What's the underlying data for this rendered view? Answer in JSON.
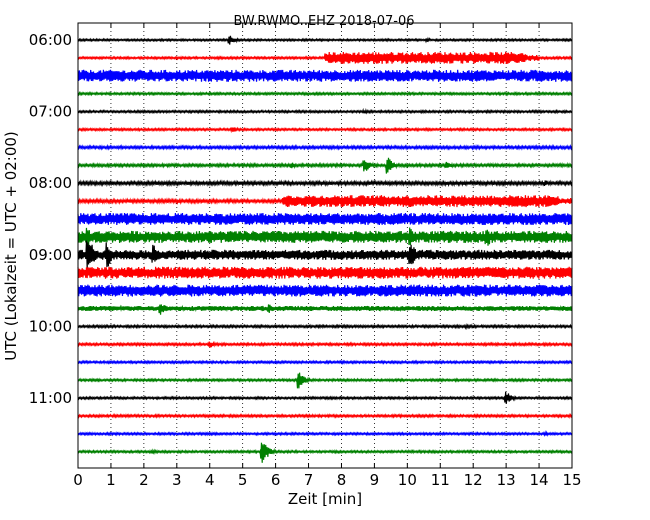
{
  "chart_data": {
    "type": "line",
    "title": "BW.RWMO..EHZ 2018-07-06",
    "xlabel": "Zeit  [min]",
    "ylabel": "UTC (Lokalzeit = UTC + 02:00)",
    "xlim": [
      0,
      15
    ],
    "x_ticks": [
      "0",
      "1",
      "2",
      "3",
      "4",
      "5",
      "6",
      "7",
      "8",
      "9",
      "10",
      "11",
      "12",
      "13",
      "14",
      "15"
    ],
    "y_ticks": [
      "06:00",
      "07:00",
      "08:00",
      "09:00",
      "10:00",
      "11:00"
    ],
    "grid": "vertical dotted",
    "trace_interval_min": 15,
    "colors": [
      "#000000",
      "#ff0000",
      "#0000ff",
      "#008000"
    ],
    "traces": [
      {
        "start": "06:00",
        "color": "#000000",
        "base": 0.9,
        "events": [
          {
            "t": 4.6,
            "amp": 5
          },
          {
            "t": 10.6,
            "amp": 2
          }
        ]
      },
      {
        "start": "06:15",
        "color": "#ff0000",
        "base": 1.0,
        "events": [
          {
            "t": 7.5,
            "amp": 6,
            "w": 6.5
          }
        ]
      },
      {
        "start": "06:30",
        "color": "#0000ff",
        "base": 6.0,
        "events": [
          {
            "t": 2.1,
            "amp": 3
          }
        ]
      },
      {
        "start": "06:45",
        "color": "#008000",
        "base": 1.0,
        "events": []
      },
      {
        "start": "07:00",
        "color": "#000000",
        "base": 1.0,
        "events": [
          {
            "t": 8.7,
            "amp": 2
          }
        ]
      },
      {
        "start": "07:15",
        "color": "#ff0000",
        "base": 1.0,
        "events": [
          {
            "t": 4.7,
            "amp": 3
          }
        ]
      },
      {
        "start": "07:30",
        "color": "#0000ff",
        "base": 1.3,
        "events": []
      },
      {
        "start": "07:45",
        "color": "#008000",
        "base": 1.3,
        "events": [
          {
            "t": 6.5,
            "amp": 3
          },
          {
            "t": 8.7,
            "amp": 8
          },
          {
            "t": 9.4,
            "amp": 9
          },
          {
            "t": 11.2,
            "amp": 4
          }
        ]
      },
      {
        "start": "08:00",
        "color": "#000000",
        "base": 1.6,
        "events": [
          {
            "t": 14.2,
            "amp": 3
          }
        ]
      },
      {
        "start": "08:15",
        "color": "#ff0000",
        "base": 1.6,
        "events": [
          {
            "t": 6.2,
            "amp": 6,
            "w": 8.8
          }
        ]
      },
      {
        "start": "08:30",
        "color": "#0000ff",
        "base": 6.0,
        "events": []
      },
      {
        "start": "08:45",
        "color": "#008000",
        "base": 6.0,
        "events": [
          {
            "t": 0.3,
            "amp": 10
          },
          {
            "t": 10.1,
            "amp": 10
          },
          {
            "t": 12.4,
            "amp": 14
          }
        ]
      },
      {
        "start": "09:00",
        "color": "#000000",
        "base": 5.0,
        "events": [
          {
            "t": 0.3,
            "amp": 22
          },
          {
            "t": 0.9,
            "amp": 14
          },
          {
            "t": 2.3,
            "amp": 10
          },
          {
            "t": 10.1,
            "amp": 14
          }
        ]
      },
      {
        "start": "09:15",
        "color": "#ff0000",
        "base": 6.0,
        "events": []
      },
      {
        "start": "09:30",
        "color": "#0000ff",
        "base": 6.0,
        "events": [
          {
            "t": 1.5,
            "amp": 7
          }
        ]
      },
      {
        "start": "09:45",
        "color": "#008000",
        "base": 2.5,
        "events": [
          {
            "t": 2.5,
            "amp": 8
          },
          {
            "t": 5.8,
            "amp": 5
          }
        ]
      },
      {
        "start": "10:00",
        "color": "#000000",
        "base": 1.1,
        "events": [
          {
            "t": 11.8,
            "amp": 2
          }
        ]
      },
      {
        "start": "10:15",
        "color": "#ff0000",
        "base": 1.1,
        "events": [
          {
            "t": 4.0,
            "amp": 4
          }
        ]
      },
      {
        "start": "10:30",
        "color": "#0000ff",
        "base": 1.0,
        "events": []
      },
      {
        "start": "10:45",
        "color": "#008000",
        "base": 1.0,
        "events": [
          {
            "t": 6.7,
            "amp": 11
          }
        ]
      },
      {
        "start": "11:00",
        "color": "#000000",
        "base": 1.0,
        "events": [
          {
            "t": 13.0,
            "amp": 7
          }
        ]
      },
      {
        "start": "11:15",
        "color": "#ff0000",
        "base": 1.1,
        "events": []
      },
      {
        "start": "11:30",
        "color": "#0000ff",
        "base": 1.0,
        "events": [
          {
            "t": 14.2,
            "amp": 2
          }
        ]
      },
      {
        "start": "11:45",
        "color": "#008000",
        "base": 1.0,
        "events": [
          {
            "t": 2.3,
            "amp": 2
          },
          {
            "t": 5.6,
            "amp": 14
          }
        ]
      }
    ]
  }
}
